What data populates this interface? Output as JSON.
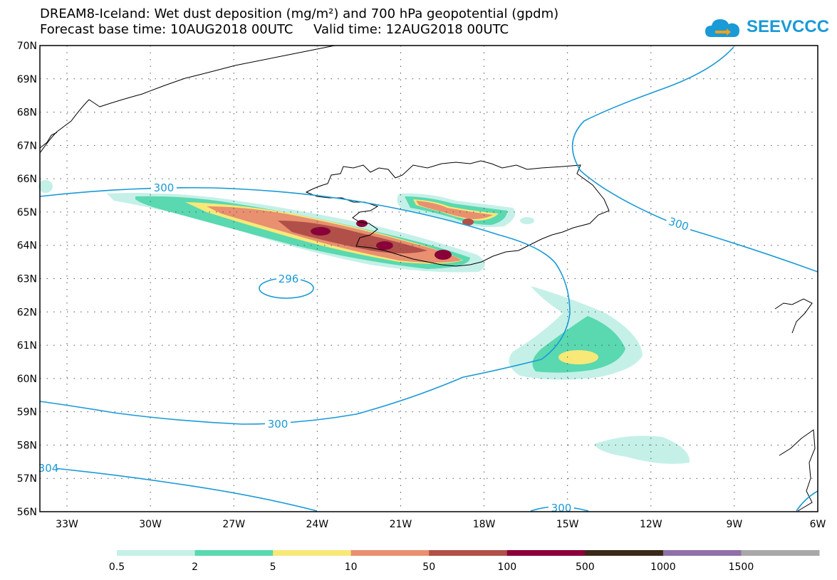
{
  "header": {
    "title": "DREAM8-Iceland: Wet dust deposition (mg/m²) and 700 hPa geopotential (gpdm)",
    "subtitle": "Forecast base time: 10AUG2018 00UTC     Valid time: 12AUG2018 00UTC",
    "logo_text": "SEEVCCC",
    "logo_icon": "cloud-icon"
  },
  "map": {
    "lat_labels": [
      "70N",
      "69N",
      "68N",
      "67N",
      "66N",
      "65N",
      "64N",
      "63N",
      "62N",
      "61N",
      "60N",
      "59N",
      "58N",
      "57N",
      "56N"
    ],
    "lon_labels": [
      "33W",
      "30W",
      "27W",
      "24W",
      "21W",
      "18W",
      "15W",
      "12W",
      "9W",
      "6W"
    ],
    "contour_labels": [
      "300",
      "300",
      "296",
      "300",
      "304",
      "300"
    ]
  },
  "legend": {
    "labels": [
      "0.5",
      "2",
      "5",
      "10",
      "50",
      "100",
      "500",
      "1000",
      "1500"
    ],
    "colors": [
      "#c4f0e8",
      "#5ad8b0",
      "#f8e878",
      "#e89070",
      "#b05048",
      "#8a0038",
      "#3a2818",
      "#9070a8",
      "#a8a8a8"
    ]
  },
  "colors": {
    "contour": "#1a9ad6",
    "coastline": "#000000"
  }
}
